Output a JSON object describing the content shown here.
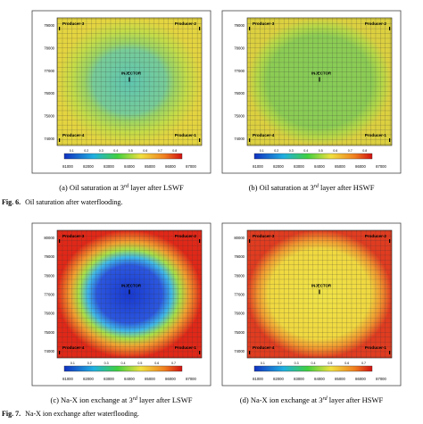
{
  "panels": [
    {
      "yticks": [
        "74000",
        "75000",
        "76000",
        "77000",
        "78000",
        "79000"
      ],
      "xticks": [
        "81000",
        "82000",
        "83000",
        "84000",
        "85000",
        "86000",
        "87000"
      ],
      "wells": [
        "Producer-3",
        "Producer-2",
        "Producer-4",
        "Producer-1"
      ],
      "injector": "INJECTOR",
      "colorbar": [
        "0.1",
        "0.2",
        "0.3",
        "0.4",
        "0.5",
        "0.6",
        "0.7",
        "0.8"
      ],
      "caption": [
        "(a)  Oil saturation at 3",
        "rd",
        " layer after LSWF"
      ]
    },
    {
      "yticks": [
        "74000",
        "75000",
        "76000",
        "77000",
        "78000",
        "79000"
      ],
      "xticks": [
        "81000",
        "82000",
        "83000",
        "84000",
        "85000",
        "86000",
        "87000"
      ],
      "wells": [
        "Producer-3",
        "Producer-2",
        "Producer-4",
        "Producer-1"
      ],
      "injector": "INJECTOR",
      "colorbar": [
        "0.1",
        "0.2",
        "0.3",
        "0.4",
        "0.5",
        "0.6",
        "0.7",
        "0.8"
      ],
      "caption": [
        "(b)  Oil saturation at 3",
        "rd",
        " layer after HSWF"
      ]
    },
    {
      "yticks": [
        "74000",
        "75000",
        "76000",
        "77000",
        "78000",
        "79000",
        "80000"
      ],
      "xticks": [
        "81000",
        "82000",
        "83000",
        "84000",
        "85000",
        "86000",
        "87000"
      ],
      "wells": [
        "Producer-3",
        "Producer-2",
        "Producer-4",
        "Producer-1"
      ],
      "injector": "INJECTOR",
      "colorbar": [
        "0.1",
        "0.2",
        "0.3",
        "0.4",
        "0.5",
        "0.6",
        "0.7"
      ],
      "caption": [
        "(c)  Na-X ion exchange at 3",
        "rd",
        " layer after LSWF"
      ]
    },
    {
      "yticks": [
        "74000",
        "75000",
        "76000",
        "77000",
        "78000",
        "79000",
        "80000"
      ],
      "xticks": [
        "81000",
        "82000",
        "83000",
        "84000",
        "85000",
        "86000",
        "87000"
      ],
      "wells": [
        "Producer-3",
        "Producer-2",
        "Producer-4",
        "Producer-1"
      ],
      "injector": "INJECTOR",
      "colorbar": [
        "0.1",
        "0.2",
        "0.3",
        "0.4",
        "0.5",
        "0.6",
        "0.7"
      ],
      "caption": [
        "(d)  Na-X ion exchange at 3",
        "rd",
        " layer after HSWF"
      ]
    }
  ],
  "figures": [
    {
      "label": "Fig. 6.",
      "text": "Oil saturation after waterflooding."
    },
    {
      "label": "Fig. 7.",
      "text": "Na-X ion exchange after waterflooding."
    }
  ]
}
